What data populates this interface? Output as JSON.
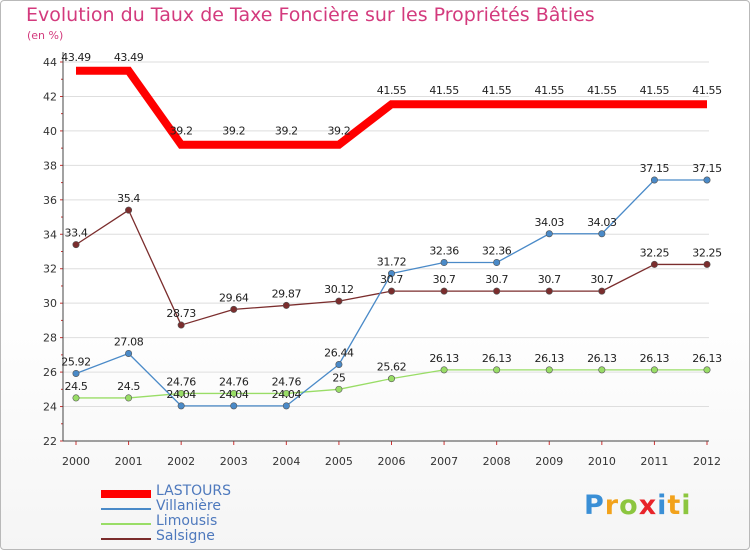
{
  "title": "Evolution du Taux de Taxe Foncière sur les Propriétés Bâties",
  "unit_label": "(en %)",
  "logo": {
    "letters": [
      {
        "ch": "P",
        "color": "#3a8fd6"
      },
      {
        "ch": "r",
        "color": "#f2a21b"
      },
      {
        "ch": "o",
        "color": "#8cc63f"
      },
      {
        "ch": "x",
        "color": "#e8242a"
      },
      {
        "ch": "i",
        "color": "#3a8fd6"
      },
      {
        "ch": "t",
        "color": "#f2a21b"
      },
      {
        "ch": "i",
        "color": "#8cc63f"
      }
    ]
  },
  "chart_data": {
    "type": "line",
    "title": "Evolution du Taux de Taxe Foncière sur les Propriétés Bâties",
    "ylabel": "(en %)",
    "xlabel": "",
    "x": [
      "2000",
      "2001",
      "2002",
      "2003",
      "2004",
      "2005",
      "2006",
      "2007",
      "2008",
      "2009",
      "2010",
      "2011",
      "2012"
    ],
    "ylim": [
      22,
      44
    ],
    "yticks": [
      22,
      24,
      26,
      28,
      30,
      32,
      34,
      36,
      38,
      40,
      42,
      44
    ],
    "grid": "horizontal",
    "legend_position": "bottom-left",
    "series": [
      {
        "name": "LASTOURS",
        "color": "#ff0000",
        "emphasized": true,
        "values": [
          43.49,
          43.49,
          39.2,
          39.2,
          39.2,
          39.2,
          41.55,
          41.55,
          41.55,
          41.55,
          41.55,
          41.55,
          41.55
        ],
        "labels": [
          "43.49",
          "43.49",
          "39.2",
          "39.2",
          "39.2",
          "39.2",
          "41.55",
          "41.55",
          "41.55",
          "41.55",
          "41.55",
          "41.55",
          "41.55"
        ]
      },
      {
        "name": "Villanière",
        "color": "#4a8ac8",
        "emphasized": false,
        "values": [
          25.92,
          27.08,
          24.04,
          24.04,
          24.04,
          26.44,
          31.72,
          32.36,
          32.36,
          34.03,
          34.03,
          37.15,
          37.15
        ],
        "labels": [
          "25.92",
          "27.08",
          "24.04",
          "24.04",
          "24.04",
          "26.44",
          "31.72",
          "32.36",
          "32.36",
          "34.03",
          "34.03",
          "37.15",
          "37.15"
        ]
      },
      {
        "name": "Limousis",
        "color": "#99dd66",
        "emphasized": false,
        "values": [
          24.5,
          24.5,
          24.76,
          24.76,
          24.76,
          25,
          25.62,
          26.13,
          26.13,
          26.13,
          26.13,
          26.13,
          26.13
        ],
        "labels": [
          "24.5",
          "24.5",
          "24.76",
          "24.76",
          "24.76",
          "25",
          "25.62",
          "26.13",
          "26.13",
          "26.13",
          "26.13",
          "26.13",
          "26.13"
        ]
      },
      {
        "name": "Salsigne",
        "color": "#7b2d2d",
        "emphasized": false,
        "values": [
          33.4,
          35.4,
          28.73,
          29.64,
          29.87,
          30.12,
          30.7,
          30.7,
          30.7,
          30.7,
          30.7,
          32.25,
          32.25
        ],
        "labels": [
          "33.4",
          "35.4",
          "28.73",
          "29.64",
          "29.87",
          "30.12",
          "30.7",
          "30.7",
          "30.7",
          "30.7",
          "30.7",
          "32.25",
          "32.25"
        ]
      }
    ]
  }
}
